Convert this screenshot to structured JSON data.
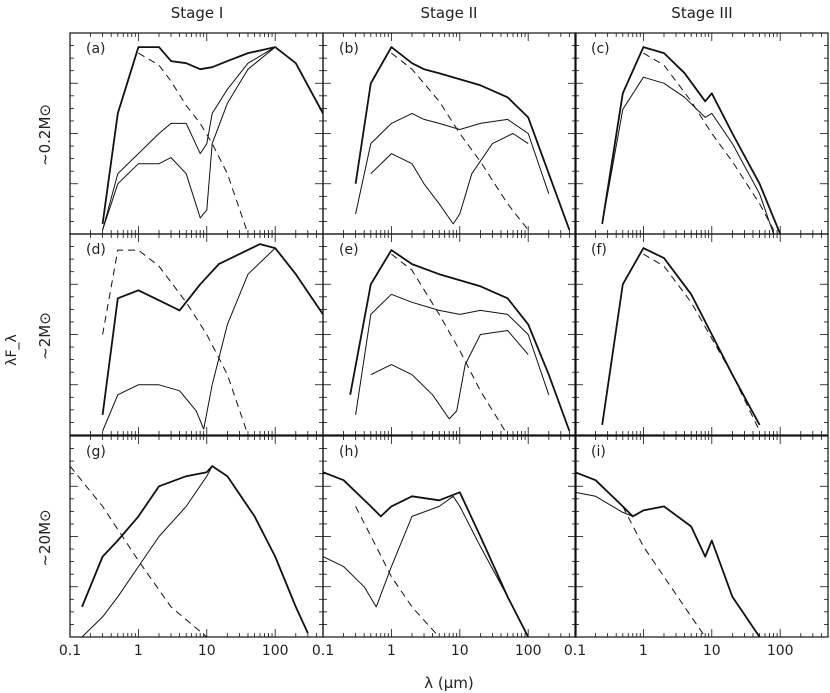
{
  "figure": {
    "column_titles": [
      "Stage I",
      "Stage II",
      "Stage III"
    ],
    "row_labels": [
      "~0.2M⊙",
      "~2M⊙",
      "~20M⊙"
    ],
    "xlabel": "λ (μm)",
    "ylabel": "λF_λ",
    "x_tick_labels": [
      "0.1",
      "1",
      "10",
      "100"
    ]
  },
  "chart_data": [
    {
      "type": "line",
      "panel": "(a)",
      "stage": "Stage I",
      "mass": "~0.2M⊙",
      "xscale": "log",
      "xlim": [
        0.1,
        500
      ],
      "ylim": [
        0,
        1
      ],
      "series": [
        {
          "style": "solid",
          "x": [
            0.3,
            0.5,
            1,
            2,
            3,
            5,
            8,
            12,
            20,
            40,
            100,
            200,
            500
          ],
          "y": [
            0.05,
            0.6,
            0.93,
            0.93,
            0.86,
            0.85,
            0.82,
            0.83,
            0.86,
            0.9,
            0.93,
            0.85,
            0.6
          ]
        },
        {
          "style": "solid",
          "x": [
            0.3,
            0.5,
            1,
            2,
            3,
            5,
            8,
            10,
            12,
            20,
            40,
            100
          ],
          "y": [
            0.02,
            0.3,
            0.4,
            0.5,
            0.55,
            0.55,
            0.4,
            0.45,
            0.6,
            0.72,
            0.85,
            0.93
          ]
        },
        {
          "style": "solid",
          "x": [
            0.3,
            0.5,
            1,
            2,
            3,
            5,
            8,
            10,
            12,
            20,
            40,
            100
          ],
          "y": [
            0.02,
            0.25,
            0.35,
            0.35,
            0.38,
            0.3,
            0.08,
            0.12,
            0.45,
            0.65,
            0.82,
            0.93
          ]
        },
        {
          "style": "dashed",
          "x": [
            1,
            2,
            3,
            5,
            8,
            12,
            20,
            40
          ],
          "y": [
            0.9,
            0.84,
            0.76,
            0.64,
            0.55,
            0.45,
            0.3,
            0.0
          ]
        }
      ]
    },
    {
      "type": "line",
      "panel": "(b)",
      "stage": "Stage II",
      "mass": "~0.2M⊙",
      "xscale": "log",
      "xlim": [
        0.1,
        500
      ],
      "ylim": [
        0,
        1
      ],
      "series": [
        {
          "style": "solid",
          "x": [
            0.3,
            0.5,
            1,
            2,
            3,
            5,
            10,
            20,
            50,
            100,
            200,
            400
          ],
          "y": [
            0.25,
            0.75,
            0.93,
            0.85,
            0.82,
            0.8,
            0.77,
            0.74,
            0.68,
            0.58,
            0.3,
            0.02
          ]
        },
        {
          "style": "solid",
          "x": [
            0.3,
            0.5,
            1,
            2,
            3,
            5,
            10,
            20,
            50,
            100,
            200
          ],
          "y": [
            0.1,
            0.45,
            0.55,
            0.6,
            0.57,
            0.55,
            0.52,
            0.55,
            0.57,
            0.5,
            0.2
          ]
        },
        {
          "style": "solid",
          "x": [
            0.5,
            1,
            2,
            3,
            5,
            8,
            10,
            15,
            30,
            60,
            100
          ],
          "y": [
            0.3,
            0.4,
            0.35,
            0.25,
            0.15,
            0.05,
            0.1,
            0.3,
            0.45,
            0.5,
            0.45
          ]
        },
        {
          "style": "dashed",
          "x": [
            1,
            2,
            5,
            10,
            20,
            50,
            100
          ],
          "y": [
            0.9,
            0.82,
            0.66,
            0.5,
            0.36,
            0.15,
            0.02
          ]
        }
      ]
    },
    {
      "type": "line",
      "panel": "(c)",
      "stage": "Stage III",
      "mass": "~0.2M⊙",
      "xscale": "log",
      "xlim": [
        0.1,
        500
      ],
      "ylim": [
        0,
        1
      ],
      "series": [
        {
          "style": "solid",
          "x": [
            0.25,
            0.5,
            1,
            2,
            4,
            8,
            10,
            20,
            50,
            100
          ],
          "y": [
            0.05,
            0.7,
            0.93,
            0.9,
            0.8,
            0.66,
            0.7,
            0.5,
            0.25,
            0.0
          ]
        },
        {
          "style": "solid",
          "x": [
            0.25,
            0.5,
            1,
            2,
            4,
            8,
            10,
            20,
            50,
            80
          ],
          "y": [
            0.05,
            0.62,
            0.78,
            0.75,
            0.68,
            0.58,
            0.6,
            0.45,
            0.2,
            0.0
          ]
        },
        {
          "style": "dashed",
          "x": [
            1,
            2,
            5,
            10,
            20,
            50,
            80
          ],
          "y": [
            0.9,
            0.84,
            0.66,
            0.5,
            0.36,
            0.15,
            0.02
          ]
        }
      ]
    },
    {
      "type": "line",
      "panel": "(d)",
      "stage": "Stage I",
      "mass": "~2M⊙",
      "xscale": "log",
      "xlim": [
        0.1,
        500
      ],
      "ylim": [
        0,
        1
      ],
      "series": [
        {
          "style": "solid",
          "x": [
            0.3,
            0.5,
            1,
            2,
            4,
            8,
            15,
            30,
            60,
            100,
            200,
            500
          ],
          "y": [
            0.1,
            0.68,
            0.72,
            0.67,
            0.62,
            0.75,
            0.85,
            0.9,
            0.95,
            0.93,
            0.8,
            0.6
          ]
        },
        {
          "style": "solid",
          "x": [
            0.3,
            0.5,
            1,
            2,
            4,
            7,
            9,
            12,
            20,
            40,
            100
          ],
          "y": [
            0.02,
            0.2,
            0.25,
            0.25,
            0.22,
            0.12,
            0.03,
            0.25,
            0.55,
            0.8,
            0.93
          ]
        },
        {
          "style": "dashed",
          "x": [
            0.3,
            0.5,
            1,
            2,
            5,
            10,
            20,
            40
          ],
          "y": [
            0.5,
            0.92,
            0.92,
            0.84,
            0.66,
            0.5,
            0.3,
            0.0
          ]
        }
      ]
    },
    {
      "type": "line",
      "panel": "(e)",
      "stage": "Stage II",
      "mass": "~2M⊙",
      "xscale": "log",
      "xlim": [
        0.1,
        500
      ],
      "ylim": [
        0,
        1
      ],
      "series": [
        {
          "style": "solid",
          "x": [
            0.25,
            0.5,
            1,
            2,
            5,
            10,
            20,
            50,
            100,
            200,
            400
          ],
          "y": [
            0.2,
            0.75,
            0.92,
            0.85,
            0.8,
            0.77,
            0.74,
            0.68,
            0.55,
            0.3,
            0.02
          ]
        },
        {
          "style": "solid",
          "x": [
            0.3,
            0.5,
            1,
            2,
            5,
            10,
            20,
            50,
            100,
            200
          ],
          "y": [
            0.1,
            0.6,
            0.7,
            0.66,
            0.62,
            0.6,
            0.62,
            0.6,
            0.5,
            0.2
          ]
        },
        {
          "style": "solid",
          "x": [
            0.5,
            1,
            2,
            4,
            7,
            9,
            12,
            20,
            50,
            100
          ],
          "y": [
            0.3,
            0.35,
            0.3,
            0.2,
            0.08,
            0.12,
            0.35,
            0.5,
            0.52,
            0.4
          ]
        },
        {
          "style": "dashed",
          "x": [
            1,
            2,
            5,
            10,
            20,
            50
          ],
          "y": [
            0.9,
            0.82,
            0.6,
            0.42,
            0.22,
            0.0
          ]
        }
      ]
    },
    {
      "type": "line",
      "panel": "(f)",
      "stage": "Stage III",
      "mass": "~2M⊙",
      "xscale": "log",
      "xlim": [
        0.1,
        500
      ],
      "ylim": [
        0,
        1
      ],
      "series": [
        {
          "style": "solid",
          "x": [
            0.25,
            0.5,
            1,
            2,
            5,
            10,
            20,
            50
          ],
          "y": [
            0.05,
            0.75,
            0.93,
            0.88,
            0.7,
            0.5,
            0.3,
            0.05
          ]
        },
        {
          "style": "dashed",
          "x": [
            1,
            2,
            5,
            10,
            20,
            50
          ],
          "y": [
            0.9,
            0.84,
            0.66,
            0.48,
            0.3,
            0.02
          ]
        }
      ]
    },
    {
      "type": "line",
      "panel": "(g)",
      "stage": "Stage I",
      "mass": "~20M⊙",
      "xscale": "log",
      "xlim": [
        0.1,
        500
      ],
      "ylim": [
        0,
        1
      ],
      "series": [
        {
          "style": "solid",
          "x": [
            0.15,
            0.3,
            0.5,
            1,
            2,
            5,
            10,
            12,
            20,
            50,
            100,
            200,
            300
          ],
          "y": [
            0.15,
            0.4,
            0.48,
            0.6,
            0.75,
            0.8,
            0.82,
            0.85,
            0.8,
            0.6,
            0.4,
            0.15,
            0.02
          ]
        },
        {
          "style": "solid",
          "x": [
            0.15,
            0.3,
            0.5,
            1,
            2,
            5,
            10,
            12,
            20,
            50,
            100,
            200,
            300
          ],
          "y": [
            0.0,
            0.1,
            0.2,
            0.35,
            0.5,
            0.65,
            0.8,
            0.85,
            0.8,
            0.6,
            0.4,
            0.15,
            0.02
          ]
        },
        {
          "style": "dashed",
          "x": [
            0.1,
            0.3,
            1,
            3,
            10
          ],
          "y": [
            0.85,
            0.65,
            0.38,
            0.15,
            0.0
          ]
        }
      ]
    },
    {
      "type": "line",
      "panel": "(h)",
      "stage": "Stage II",
      "mass": "~20M⊙",
      "xscale": "log",
      "xlim": [
        0.1,
        500
      ],
      "ylim": [
        0,
        1
      ],
      "series": [
        {
          "style": "solid",
          "x": [
            0.1,
            0.2,
            0.5,
            0.7,
            1,
            2,
            5,
            10,
            20,
            50,
            100
          ],
          "y": [
            0.82,
            0.78,
            0.65,
            0.6,
            0.65,
            0.7,
            0.68,
            0.72,
            0.5,
            0.2,
            0.0
          ]
        },
        {
          "style": "solid",
          "x": [
            0.1,
            0.2,
            0.4,
            0.6,
            1,
            2,
            5,
            8,
            10,
            20,
            50,
            100
          ],
          "y": [
            0.4,
            0.35,
            0.25,
            0.15,
            0.35,
            0.6,
            0.65,
            0.7,
            0.65,
            0.45,
            0.2,
            0.0
          ]
        },
        {
          "style": "dashed",
          "x": [
            0.3,
            0.6,
            1,
            2,
            5
          ],
          "y": [
            0.65,
            0.45,
            0.3,
            0.15,
            0.0
          ]
        }
      ]
    },
    {
      "type": "line",
      "panel": "(i)",
      "stage": "Stage III",
      "mass": "~20M⊙",
      "xscale": "log",
      "xlim": [
        0.1,
        500
      ],
      "ylim": [
        0,
        1
      ],
      "series": [
        {
          "style": "solid",
          "x": [
            0.1,
            0.2,
            0.5,
            0.7,
            1,
            2,
            5,
            8,
            10,
            20,
            50
          ],
          "y": [
            0.82,
            0.78,
            0.65,
            0.6,
            0.63,
            0.65,
            0.55,
            0.4,
            0.48,
            0.2,
            0.0
          ]
        },
        {
          "style": "solid",
          "x": [
            0.1,
            0.2,
            0.5,
            0.7,
            1,
            2,
            5,
            8,
            10,
            20,
            50
          ],
          "y": [
            0.72,
            0.7,
            0.62,
            0.6,
            0.63,
            0.65,
            0.55,
            0.4,
            0.48,
            0.2,
            0.0
          ]
        },
        {
          "style": "dashed",
          "x": [
            0.5,
            1,
            2,
            4,
            8
          ],
          "y": [
            0.65,
            0.45,
            0.3,
            0.15,
            0.0
          ]
        }
      ]
    }
  ]
}
